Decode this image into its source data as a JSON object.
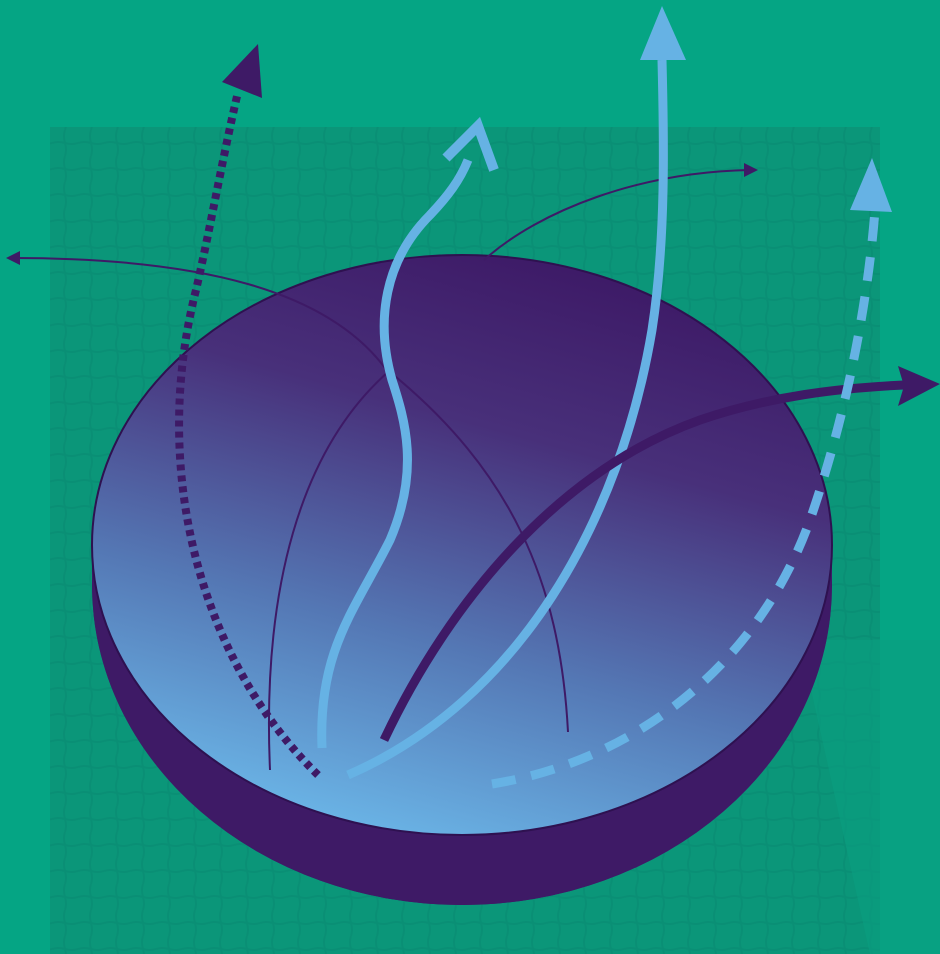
{
  "illustration": {
    "subject": "disc-with-diverging-arrows",
    "colors": {
      "background": "#05a584",
      "grid_panel": "#0b9679",
      "grid_line": "#0a8f76",
      "disc_top_light": "#66b2e4",
      "disc_top_dark": "#3d1a66",
      "disc_side": "#3e1a66",
      "arrow_dark": "#3e1a66",
      "arrow_light": "#66b2e4",
      "arrow_thin": "#3e1a66"
    },
    "arrows": [
      {
        "name": "dotted-dark-arrow",
        "style": "dotted",
        "color": "arrow_dark"
      },
      {
        "name": "wavy-light-arrow",
        "style": "solid",
        "color": "arrow_light"
      },
      {
        "name": "tall-light-arrow",
        "style": "solid",
        "color": "arrow_light"
      },
      {
        "name": "thick-dark-arrow",
        "style": "solid",
        "color": "arrow_dark"
      },
      {
        "name": "dashed-light-arrow",
        "style": "dashed",
        "color": "arrow_light"
      },
      {
        "name": "thin-left-arrow",
        "style": "thin",
        "color": "arrow_thin"
      },
      {
        "name": "thin-right-arrow",
        "style": "thin",
        "color": "arrow_thin"
      }
    ]
  }
}
